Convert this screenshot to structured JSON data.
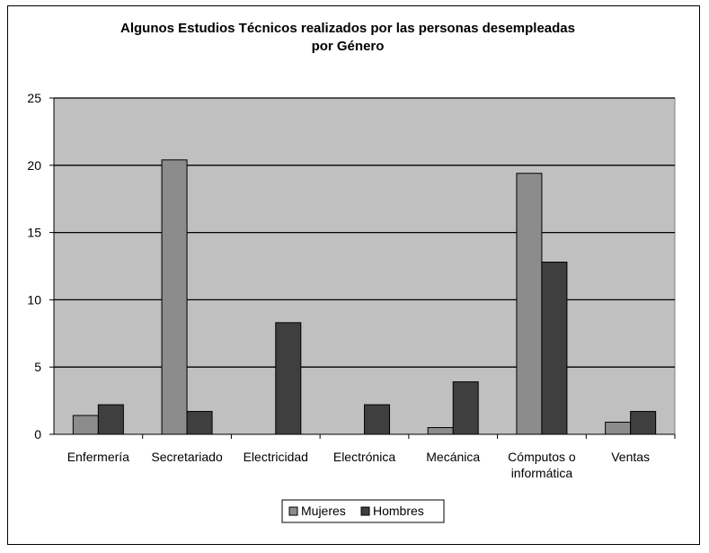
{
  "chart_data": {
    "type": "bar",
    "title_lines": [
      "Algunos Estudios Técnicos  realizados por las personas desempleadas",
      "por Género"
    ],
    "xlabel": "",
    "ylabel": "",
    "ylim": [
      0,
      25
    ],
    "yticks": [
      "0",
      "5",
      "10",
      "15",
      "20",
      "25"
    ],
    "grid": true,
    "legend_position": "bottom",
    "categories": [
      [
        "Enfermería"
      ],
      [
        "Secretariado"
      ],
      [
        "Electricidad"
      ],
      [
        "Electrónica"
      ],
      [
        "Mecánica"
      ],
      [
        "Cómputos o",
        "informática"
      ],
      [
        "Ventas"
      ]
    ],
    "series": [
      {
        "name": "Mujeres",
        "color": "#8c8c8c",
        "values": [
          1.4,
          20.4,
          0,
          0,
          0.5,
          19.4,
          0.9
        ]
      },
      {
        "name": "Hombres",
        "color": "#3f3f3f",
        "values": [
          2.2,
          1.7,
          8.3,
          2.2,
          3.9,
          12.8,
          1.7
        ]
      }
    ],
    "plot_background": "#c0c0c0"
  }
}
